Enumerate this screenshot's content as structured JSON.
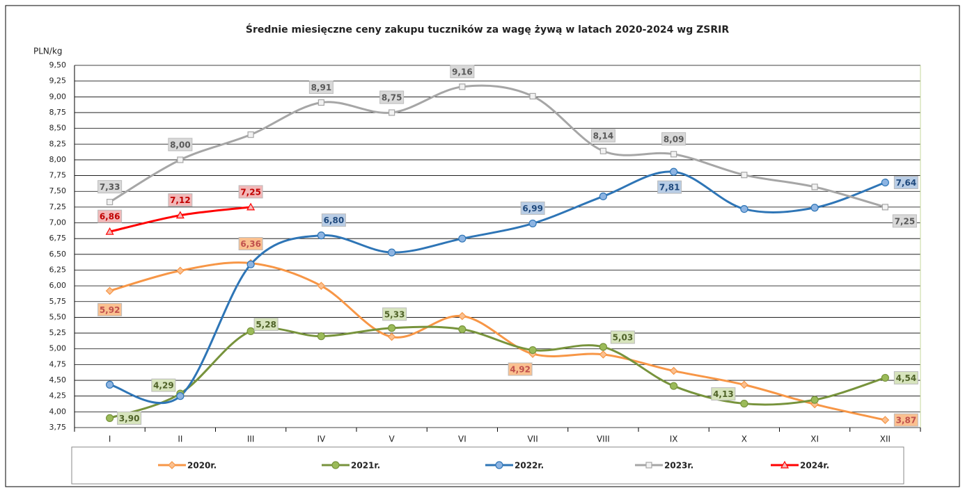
{
  "chart_data": {
    "type": "line",
    "title": "Średnie miesięczne ceny zakupu tuczników za wagę żywą w latach 2020-2024 wg ZSRIR",
    "y_label": "PLN/kg",
    "categories": [
      "I",
      "II",
      "III",
      "IV",
      "V",
      "VI",
      "VII",
      "VIII",
      "IX",
      "X",
      "XI",
      "XII"
    ],
    "ylim": [
      3.75,
      9.5
    ],
    "yticks": [
      {
        "value": 3.75,
        "label": "3,75"
      },
      {
        "value": 4,
        "label": "4,00"
      },
      {
        "value": 4.25,
        "label": "4,25"
      },
      {
        "value": 4.5,
        "label": "4,50"
      },
      {
        "value": 4.75,
        "label": "4,75"
      },
      {
        "value": 5,
        "label": "5,00"
      },
      {
        "value": 5.25,
        "label": "5,25"
      },
      {
        "value": 5.5,
        "label": "5,50"
      },
      {
        "value": 5.75,
        "label": "5,75"
      },
      {
        "value": 6,
        "label": "6,00"
      },
      {
        "value": 6.25,
        "label": "6,25"
      },
      {
        "value": 6.5,
        "label": "6,50"
      },
      {
        "value": 6.75,
        "label": "6,75"
      },
      {
        "value": 7,
        "label": "7,00"
      },
      {
        "value": 7.25,
        "label": "7,25"
      },
      {
        "value": 7.5,
        "label": "7,50"
      },
      {
        "value": 7.75,
        "label": "7,75"
      },
      {
        "value": 8,
        "label": "8,00"
      },
      {
        "value": 8.25,
        "label": "8,25"
      },
      {
        "value": 8.5,
        "label": "8,50"
      },
      {
        "value": 8.75,
        "label": "8,75"
      },
      {
        "value": 9,
        "label": "9,00"
      },
      {
        "value": 9.25,
        "label": "9,25"
      },
      {
        "value": 9.5,
        "label": "9,50"
      }
    ],
    "grid": true,
    "legend": "bottom",
    "series": [
      {
        "name": "2020r.",
        "color": "#f79646",
        "marker": "diamond",
        "values": [
          5.92,
          6.24,
          6.36,
          6.0,
          5.19,
          5.52,
          4.92,
          4.91,
          4.65,
          4.43,
          4.12,
          3.87
        ],
        "value_labels": [
          "5,92",
          null,
          "6,36",
          null,
          null,
          null,
          "4,92",
          null,
          null,
          null,
          null,
          "3,87"
        ]
      },
      {
        "name": "2021r.",
        "color": "#77933c",
        "marker": "circle",
        "values": [
          3.9,
          4.29,
          5.28,
          5.2,
          5.33,
          5.31,
          4.98,
          5.03,
          4.41,
          4.13,
          4.19,
          4.54
        ],
        "value_labels": [
          "3,90",
          "4,29",
          "5,28",
          null,
          "5,33",
          null,
          null,
          "5,03",
          null,
          "4,13",
          null,
          "4,54"
        ]
      },
      {
        "name": "2022r.",
        "color": "#2e75b6",
        "marker": "circle",
        "values": [
          4.43,
          4.25,
          6.34,
          6.8,
          6.53,
          6.75,
          6.99,
          7.42,
          7.81,
          7.22,
          7.24,
          7.64
        ],
        "value_labels": [
          null,
          null,
          null,
          "6,80",
          null,
          null,
          "6,99",
          null,
          "7,81",
          null,
          null,
          "7,64"
        ]
      },
      {
        "name": "2023r.",
        "color": "#a6a6a6",
        "marker": "square",
        "values": [
          7.33,
          8.0,
          8.4,
          8.91,
          8.75,
          9.16,
          9.01,
          8.14,
          8.09,
          7.76,
          7.57,
          7.25
        ],
        "value_labels": [
          "7,33",
          "8,00",
          null,
          "8,91",
          "8,75",
          "9,16",
          null,
          "8,14",
          "8,09",
          null,
          null,
          "7,25"
        ]
      },
      {
        "name": "2024r.",
        "color": "#ff0000",
        "marker": "triangle",
        "values": [
          6.86,
          7.12,
          7.25,
          null,
          null,
          null,
          null,
          null,
          null,
          null,
          null,
          null
        ],
        "value_labels": [
          "6,86",
          "7,12",
          "7,25",
          null,
          null,
          null,
          null,
          null,
          null,
          null,
          null,
          null
        ]
      }
    ]
  }
}
